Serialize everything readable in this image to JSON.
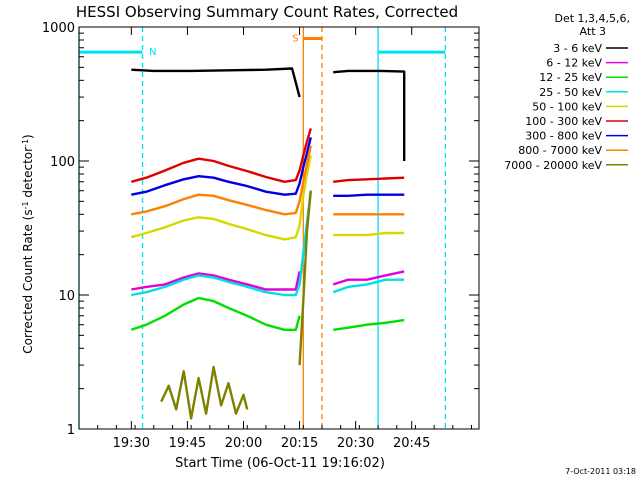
{
  "chart_data": {
    "type": "line",
    "title": "HESSI Observing Summary Count Rates, Corrected",
    "xlabel": "Start Time (06-Oct-11 19:16:02)",
    "ylabel_main": "Corrected Count Rate (s",
    "ylabel_sup1": "-1",
    "ylabel_mid": " detector",
    "ylabel_sup2": "-1",
    "ylabel_end": ")",
    "xlim_minutes": [
      0,
      107
    ],
    "ylim": [
      1,
      1000
    ],
    "yscale": "log",
    "x_ticks": [
      {
        "minute": 14,
        "label": "19:30"
      },
      {
        "minute": 29,
        "label": "19:45"
      },
      {
        "minute": 44,
        "label": "20:00"
      },
      {
        "minute": 59,
        "label": "20:15"
      },
      {
        "minute": 74,
        "label": "20:30"
      },
      {
        "minute": 89,
        "label": "20:45"
      }
    ],
    "y_ticks": [
      {
        "value": 1,
        "label": "1"
      },
      {
        "value": 10,
        "label": "10"
      },
      {
        "value": 100,
        "label": "100"
      },
      {
        "value": 1000,
        "label": "1000"
      }
    ],
    "legend": {
      "header1": "Det 1,3,4,5,6,",
      "header2": "Att 3",
      "placement": "right"
    },
    "series": [
      {
        "name": "3 - 6 keV",
        "color": "#000000",
        "segments": [
          {
            "x": [
              14,
              20,
              30,
              40,
              50,
              57,
              59
            ],
            "y": [
              480,
              470,
              470,
              475,
              480,
              490,
              300
            ]
          },
          {
            "x": [
              68,
              72,
              80,
              87,
              87
            ],
            "y": [
              460,
              470,
              470,
              465,
              100
            ]
          }
        ]
      },
      {
        "name": "6 - 12 keV",
        "color": "#e000e0",
        "segments": [
          {
            "x": [
              14,
              18,
              23,
              28,
              32,
              36,
              40,
              45,
              50,
              55,
              58,
              59
            ],
            "y": [
              11,
              11.5,
              12,
              13.5,
              14.5,
              14,
              13,
              12,
              11,
              11,
              11,
              15
            ]
          },
          {
            "x": [
              68,
              72,
              77,
              82,
              87
            ],
            "y": [
              12,
              13,
              13,
              14,
              15
            ]
          }
        ]
      },
      {
        "name": "12 - 25 keV",
        "color": "#00e000",
        "segments": [
          {
            "x": [
              14,
              18,
              23,
              28,
              32,
              36,
              40,
              45,
              50,
              55,
              58,
              59
            ],
            "y": [
              5.5,
              6,
              7,
              8.5,
              9.5,
              9,
              8,
              7,
              6,
              5.5,
              5.5,
              7
            ]
          },
          {
            "x": [
              68,
              72,
              77,
              82,
              87
            ],
            "y": [
              5.5,
              5.7,
              6,
              6.2,
              6.5
            ]
          }
        ]
      },
      {
        "name": "25 - 50 keV",
        "color": "#00e0e0",
        "segments": [
          {
            "x": [
              14,
              18,
              23,
              28,
              32,
              36,
              40,
              45,
              50,
              55,
              58,
              59,
              61,
              62
            ],
            "y": [
              10,
              10.5,
              11.5,
              13,
              14,
              13.5,
              12.5,
              11.5,
              10.5,
              10,
              10,
              12,
              35,
              60
            ]
          },
          {
            "x": [
              68,
              72,
              77,
              82,
              87
            ],
            "y": [
              10.5,
              11.5,
              12,
              13,
              13
            ]
          }
        ]
      },
      {
        "name": "50 - 100 keV",
        "color": "#d8d800",
        "segments": [
          {
            "x": [
              14,
              18,
              23,
              28,
              32,
              36,
              40,
              45,
              50,
              55,
              58,
              59,
              60,
              61,
              62
            ],
            "y": [
              27,
              29,
              32,
              36,
              38,
              37,
              34,
              31,
              28,
              26,
              27,
              33,
              55,
              80,
              110
            ]
          },
          {
            "x": [
              68,
              72,
              77,
              82,
              87
            ],
            "y": [
              28,
              28,
              28,
              29,
              29
            ]
          }
        ]
      },
      {
        "name": "100 - 300 keV",
        "color": "#e00000",
        "segments": [
          {
            "x": [
              14,
              18,
              23,
              28,
              32,
              36,
              40,
              45,
              50,
              55,
              58,
              59,
              60,
              61,
              62
            ],
            "y": [
              70,
              75,
              85,
              97,
              104,
              100,
              92,
              84,
              76,
              70,
              72,
              85,
              110,
              140,
              175
            ]
          },
          {
            "x": [
              68,
              72,
              77,
              82,
              87
            ],
            "y": [
              70,
              72,
              73,
              74,
              75
            ]
          }
        ]
      },
      {
        "name": "300 - 800 keV",
        "color": "#0000e0",
        "segments": [
          {
            "x": [
              14,
              18,
              23,
              28,
              32,
              36,
              40,
              45,
              50,
              55,
              58,
              59,
              60,
              61,
              62
            ],
            "y": [
              56,
              59,
              66,
              73,
              77,
              75,
              70,
              65,
              59,
              56,
              57,
              68,
              90,
              115,
              150
            ]
          },
          {
            "x": [
              68,
              72,
              77,
              82,
              87
            ],
            "y": [
              55,
              55,
              56,
              56,
              56
            ]
          }
        ]
      },
      {
        "name": "800 - 7000 keV",
        "color": "#ff8000",
        "segments": [
          {
            "x": [
              14,
              18,
              23,
              28,
              32,
              36,
              40,
              45,
              50,
              55,
              58,
              59,
              60,
              61,
              62
            ],
            "y": [
              40,
              42,
              46,
              52,
              56,
              55,
              51,
              47,
              43,
              40,
              41,
              50,
              70,
              95,
              130
            ]
          },
          {
            "x": [
              68,
              72,
              77,
              82,
              87
            ],
            "y": [
              40,
              40,
              40,
              40,
              40
            ]
          }
        ]
      },
      {
        "name": "7000 - 20000 keV",
        "color": "#808000",
        "segments": [
          {
            "x": [
              22,
              24,
              26,
              28,
              30,
              32,
              34,
              36,
              38,
              40,
              42,
              44,
              45
            ],
            "y": [
              1.6,
              2.1,
              1.4,
              2.7,
              1.2,
              2.4,
              1.3,
              2.9,
              1.5,
              2.2,
              1.3,
              1.8,
              1.4
            ]
          },
          {
            "x": [
              59,
              60,
              61,
              62
            ],
            "y": [
              3,
              9,
              30,
              60
            ]
          }
        ]
      }
    ],
    "flags": [
      {
        "label": "N",
        "color": "#00e0f0",
        "from_minute": 0,
        "to_minute": 17,
        "at_value": 650
      },
      {
        "label": "S",
        "color": "#ff8000",
        "from_minute": 60,
        "to_minute": 65,
        "at_value": 820
      }
    ],
    "flag_right": {
      "color": "#00e0f0",
      "from_minute": 80,
      "to_minute": 98,
      "at_value": 650
    },
    "vlines": [
      {
        "minute": 0,
        "color": "#00e0f0",
        "style": "solid"
      },
      {
        "minute": 17,
        "color": "#00e0f0",
        "style": "dashed"
      },
      {
        "minute": 60,
        "color": "#ff8000",
        "style": "solid"
      },
      {
        "minute": 65,
        "color": "#ff8000",
        "style": "dashed"
      },
      {
        "minute": 80,
        "color": "#00e0f0",
        "style": "solid"
      },
      {
        "minute": 98,
        "color": "#00e0f0",
        "style": "dashed"
      }
    ],
    "footer_date": "7-Oct-2011 03:18"
  }
}
